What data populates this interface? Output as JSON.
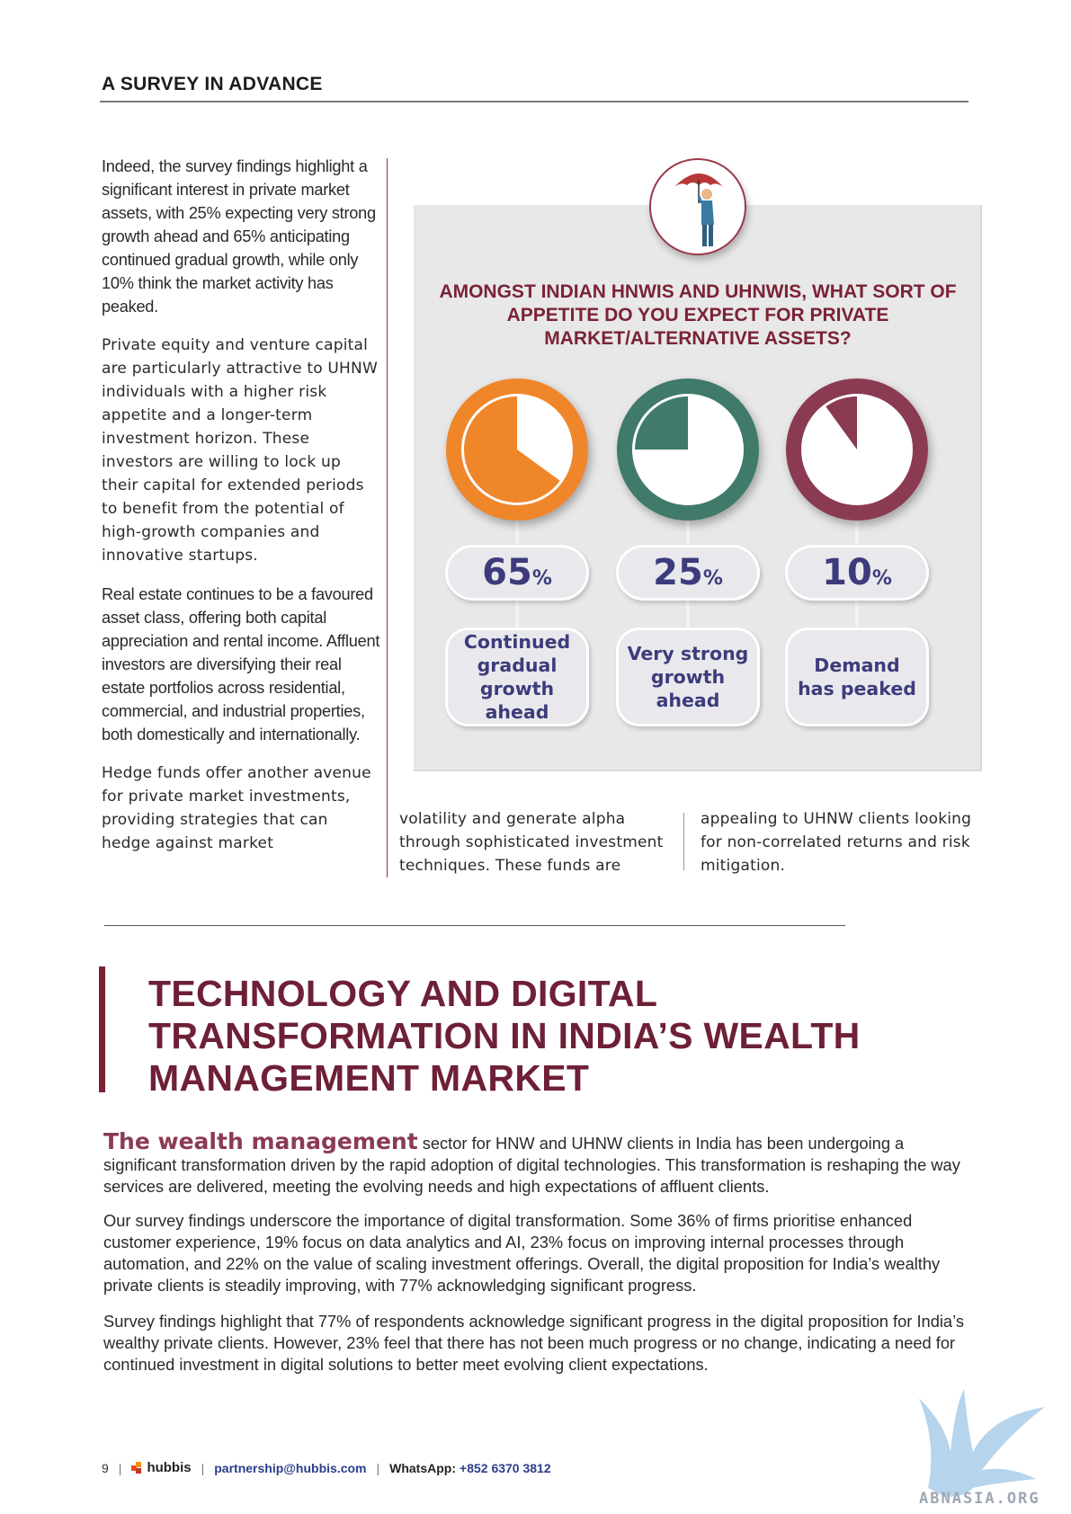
{
  "header": {
    "title": "A SURVEY IN ADVANCE"
  },
  "left_column": [
    "Indeed, the survey findings highlight a significant interest in private market assets, with 25% expecting very strong growth ahead and 65% anticipating continued gradual growth, while only 10% think the market activity has peaked.",
    "Private equity and venture capital are particularly attractive to UHNW individuals with a higher risk appetite and a longer-term investment horizon. These investors are willing to lock up their capital for extended periods to benefit from the potential of high-growth companies and innovative startups.",
    "Real estate continues to be a favoured asset class, offering both capital appreciation and rental income. Affluent investors are diversifying their real estate portfolios across residential, commercial, and industrial properties, both domestically and internationally.",
    "Hedge funds offer another avenue for private market investments, providing strategies that can hedge against market"
  ],
  "continued_columns": [
    "volatility and generate alpha through sophisticated investment techniques. These funds are",
    "appealing to UHNW clients looking for non-correlated returns and risk mitigation."
  ],
  "infographic": {
    "title": "AMONGST INDIAN HNWIS AND UHNWIS, WHAT SORT OF APPETITE DO YOU EXPECT FOR PRIVATE MARKET/ALTERNATIVE ASSETS?",
    "percent_symbol": "%",
    "colors": {
      "orange": "#f0862a",
      "green": "#3f7a6a",
      "maroon": "#8a3b52",
      "label_text": "#3c3c7c"
    },
    "items": [
      {
        "value": 65,
        "value_label": "65",
        "label": "Continued gradual growth ahead",
        "color": "#f0862a"
      },
      {
        "value": 25,
        "value_label": "25",
        "label": "Very strong growth ahead",
        "color": "#3f7a6a"
      },
      {
        "value": 10,
        "value_label": "10",
        "label": "Demand has peaked",
        "color": "#8a3b52"
      }
    ]
  },
  "section": {
    "title": "TECHNOLOGY AND DIGITAL TRANSFORMATION IN INDIA’S WEALTH MANAGEMENT MARKET",
    "lead": "The wealth management",
    "para1_rest": " sector for HNW and UHNW clients in India has been undergoing a significant transformation driven by the rapid adoption of digital technologies. This transformation is reshaping the way services are delivered, meeting the evolving needs and high expectations of affluent clients.",
    "para2": "Our survey findings underscore the importance of digital transformation. Some 36% of firms prioritise enhanced customer experience, 19% focus on data analytics and AI, 23% focus on improving internal processes through automation, and 22% on the value of scaling investment offerings. Overall, the digital proposition for India’s wealthy private clients is steadily improving, with 77% acknowledging  significant progress.",
    "para3": "Survey findings highlight that 77% of respondents acknowledge significant progress in the digital proposition for India’s wealthy private clients. However, 23% feel that there has not been much progress or no change, indicating a need for continued investment in digital solutions to better meet evolving client expectations."
  },
  "footer": {
    "page_number": "9",
    "separator": "|",
    "logo_text": "hubbis",
    "email": "partnership@hubbis.com",
    "whatsapp_label": "WhatsApp:",
    "whatsapp_number": "+852 6370 3812"
  },
  "watermark": {
    "text": "ABNASIA.ORG"
  }
}
